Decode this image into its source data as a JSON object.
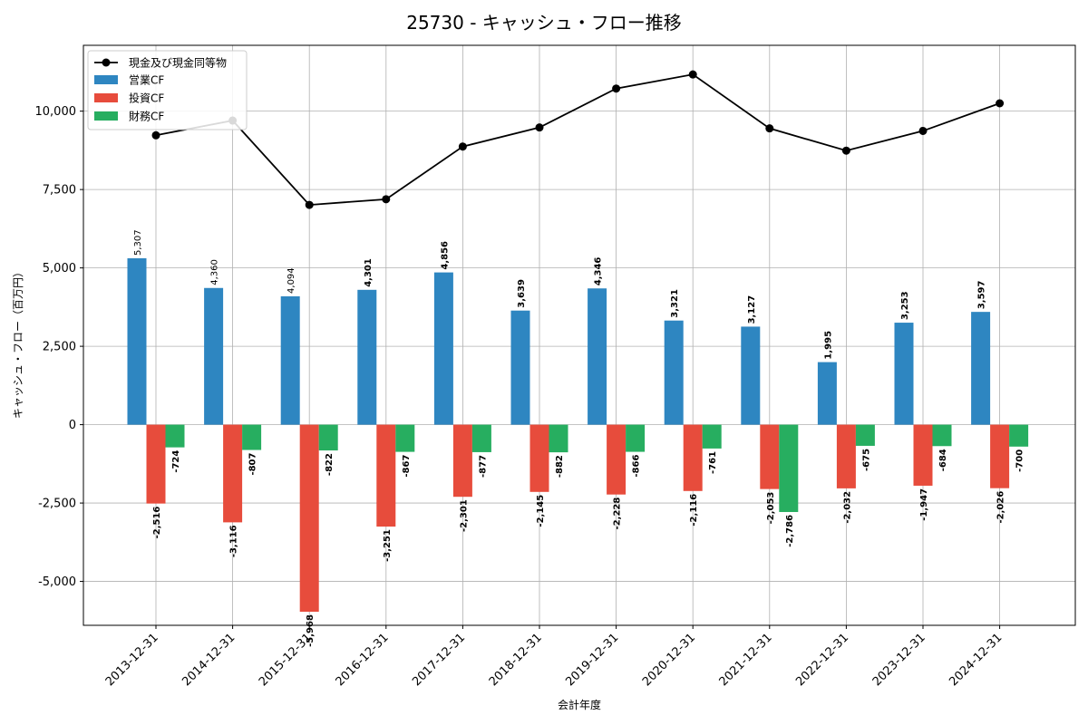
{
  "chart_data": {
    "type": "bar",
    "title": "25730 - キャッシュ・フロー推移",
    "xlabel": "会計年度",
    "ylabel": "キャッシュ・フロー（百万円）",
    "ylim": [
      -6400,
      12100
    ],
    "yticks": [
      -5000,
      -2500,
      0,
      2500,
      5000,
      7500,
      10000
    ],
    "ytick_labels": [
      "-5,000",
      "-2,500",
      "0",
      "2,500",
      "5,000",
      "7,500",
      "10,000"
    ],
    "grid": true,
    "legend_position": "top-left",
    "categories": [
      "2013-12-31",
      "2014-12-31",
      "2015-12-31",
      "2016-12-31",
      "2017-12-31",
      "2018-12-31",
      "2019-12-31",
      "2020-12-31",
      "2021-12-31",
      "2022-12-31",
      "2023-12-31",
      "2024-12-31"
    ],
    "series": [
      {
        "name": "現金及び現金同等物",
        "type": "line",
        "color": "#000000",
        "values": [
          9230,
          9700,
          7010,
          7190,
          8870,
          9480,
          10720,
          11170,
          9450,
          8740,
          9370,
          10250
        ]
      },
      {
        "name": "営業CF",
        "type": "bar",
        "color": "#2e86c1",
        "values": [
          5307,
          4360,
          4094,
          4301,
          4856,
          3639,
          4346,
          3321,
          3127,
          1995,
          3253,
          3597
        ],
        "labels": [
          "5,307",
          "4,360",
          "4,094",
          "4,301",
          "4,856",
          "3,639",
          "4,346",
          "3,321",
          "3,127",
          "1,995",
          "3,253",
          "3,597"
        ]
      },
      {
        "name": "投資CF",
        "type": "bar",
        "color": "#e74c3c",
        "values": [
          -2516,
          -3116,
          -5968,
          -3251,
          -2301,
          -2145,
          -2228,
          -2116,
          -2053,
          -2032,
          -1947,
          -2026
        ],
        "labels": [
          "-2,516",
          "-3,116",
          "-5,968",
          "-3,251",
          "-2,301",
          "-2,145",
          "-2,228",
          "-2,116",
          "-2,053",
          "-2,032",
          "-1,947",
          "-2,026"
        ]
      },
      {
        "name": "財務CF",
        "type": "bar",
        "color": "#27ae60",
        "values": [
          -724,
          -807,
          -822,
          -867,
          -877,
          -882,
          -866,
          -761,
          -2786,
          -675,
          -684,
          -700
        ],
        "labels": [
          "-724",
          "-807",
          "-822",
          "-867",
          "-877",
          "-882",
          "-866",
          "-761",
          "-2,786",
          "-675",
          "-684",
          "-700"
        ]
      }
    ]
  }
}
